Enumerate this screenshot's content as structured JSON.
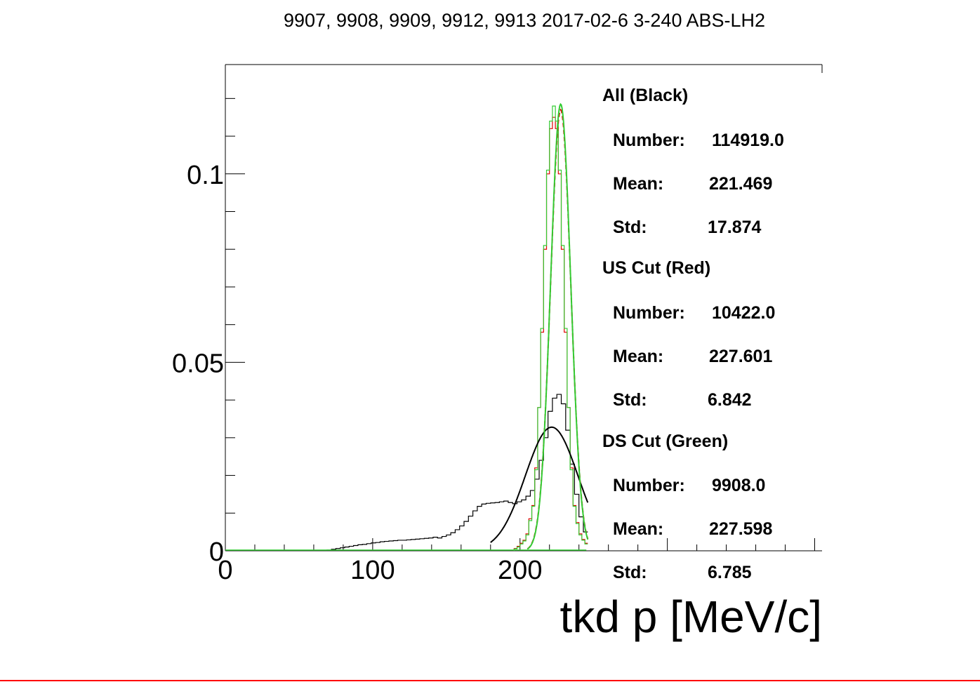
{
  "title": "9907, 9908, 9909, 9912, 9913 2017-02-6 3-240 ABS-LH2",
  "colors": {
    "all": "#000000",
    "us": "#e00000",
    "ds": "#33cc33",
    "frame": "#000000",
    "footer": "#ff0000"
  },
  "stats": [
    {
      "head": "All (Black)",
      "number_label": "Number:",
      "number": "114919.0",
      "mean_label": "Mean:",
      "mean": "221.469",
      "std_label": "Std:",
      "std": "17.874"
    },
    {
      "head": "US Cut (Red)",
      "number_label": "Number:",
      "number": "10422.0",
      "mean_label": "Mean:",
      "mean": "227.601",
      "std_label": "Std:",
      "std": "6.842"
    },
    {
      "head": "DS Cut (Green)",
      "number_label": "Number:",
      "number": "9908.0",
      "mean_label": "Mean:",
      "mean": "227.598",
      "std_label": "Std:",
      "std": "6.785"
    }
  ],
  "chart_data": {
    "type": "line",
    "title": "9907, 9908, 9909, 9912, 9913 2017-02-6 3-240 ABS-LH2",
    "xlabel": "tkd p [MeV/c]",
    "ylabel": "",
    "xlim": [
      0,
      405
    ],
    "ylim": [
      0,
      0.129
    ],
    "x_ticks": [
      {
        "value": 0,
        "label": "0"
      },
      {
        "value": 100,
        "label": "100"
      },
      {
        "value": 200,
        "label": "200"
      }
    ],
    "y_ticks": [
      {
        "value": 0,
        "label": "0"
      },
      {
        "value": 0.05,
        "label": "0.05"
      },
      {
        "value": 0.1,
        "label": "0.1"
      }
    ],
    "grid": false,
    "legend": "stats box right",
    "series": [
      {
        "name": "All (Black)",
        "kind": "histogram",
        "bin_width": 3,
        "x": [
          69,
          72,
          75,
          78,
          81,
          84,
          87,
          90,
          93,
          96,
          99,
          102,
          105,
          108,
          111,
          114,
          117,
          120,
          123,
          126,
          129,
          132,
          135,
          138,
          141,
          144,
          147,
          150,
          153,
          156,
          159,
          162,
          165,
          168,
          171,
          174,
          177,
          180,
          183,
          186,
          189,
          192,
          195,
          198,
          201,
          204,
          207,
          210,
          213,
          216,
          219,
          222,
          225,
          228,
          231,
          234,
          237,
          240,
          243
        ],
        "values": [
          0.0002,
          0.0004,
          0.0006,
          0.0008,
          0.001,
          0.0012,
          0.0014,
          0.0016,
          0.0017,
          0.0019,
          0.0021,
          0.0022,
          0.0024,
          0.0025,
          0.0026,
          0.0027,
          0.0028,
          0.0028,
          0.0029,
          0.003,
          0.0031,
          0.0032,
          0.0033,
          0.0034,
          0.0036,
          0.0034,
          0.0038,
          0.0042,
          0.0048,
          0.0056,
          0.0066,
          0.0078,
          0.0092,
          0.0106,
          0.0118,
          0.0124,
          0.0126,
          0.0127,
          0.0128,
          0.013,
          0.0132,
          0.0128,
          0.0125,
          0.013,
          0.0135,
          0.0145,
          0.016,
          0.019,
          0.024,
          0.03,
          0.037,
          0.0405,
          0.0415,
          0.039,
          0.032,
          0.023,
          0.015,
          0.009,
          0.005
        ]
      },
      {
        "name": "US Cut (Red)",
        "kind": "histogram",
        "bin_width": 2,
        "x": [
          196,
          198,
          200,
          202,
          204,
          206,
          208,
          210,
          212,
          214,
          216,
          218,
          220,
          222,
          224,
          226,
          228,
          230,
          232,
          234,
          236,
          238,
          240,
          242,
          244
        ],
        "values": [
          0.0006,
          0.0012,
          0.002,
          0.0028,
          0.0045,
          0.0085,
          0.012,
          0.022,
          0.038,
          0.058,
          0.08,
          0.1,
          0.112,
          0.115,
          0.112,
          0.1,
          0.08,
          0.058,
          0.038,
          0.022,
          0.012,
          0.0075,
          0.0045,
          0.003,
          0.002
        ]
      },
      {
        "name": "DS Cut (Green)",
        "kind": "histogram",
        "bin_width": 2,
        "x": [
          196,
          198,
          200,
          202,
          204,
          206,
          208,
          210,
          212,
          214,
          216,
          218,
          220,
          222,
          224,
          226,
          228,
          230,
          232,
          234,
          236,
          238,
          240,
          242,
          244
        ],
        "values": [
          0.0005,
          0.001,
          0.0018,
          0.0026,
          0.0042,
          0.008,
          0.0118,
          0.0215,
          0.038,
          0.059,
          0.081,
          0.101,
          0.114,
          0.118,
          0.114,
          0.101,
          0.081,
          0.059,
          0.038,
          0.0215,
          0.0118,
          0.0072,
          0.0042,
          0.0028,
          0.0018
        ]
      },
      {
        "kind": "gaussian_fit",
        "color_of": "all",
        "amplitude": 0.0328,
        "mean": 221.469,
        "sigma": 17.874,
        "x_range": [
          180,
          246
        ]
      },
      {
        "kind": "gaussian_fit",
        "color_of": "us",
        "amplitude": 0.117,
        "mean": 227.601,
        "sigma": 6.842,
        "x_range": [
          205,
          246
        ]
      },
      {
        "kind": "gaussian_fit",
        "color_of": "ds",
        "amplitude": 0.1185,
        "mean": 227.598,
        "sigma": 6.785,
        "x_range": [
          205,
          246
        ]
      }
    ]
  }
}
